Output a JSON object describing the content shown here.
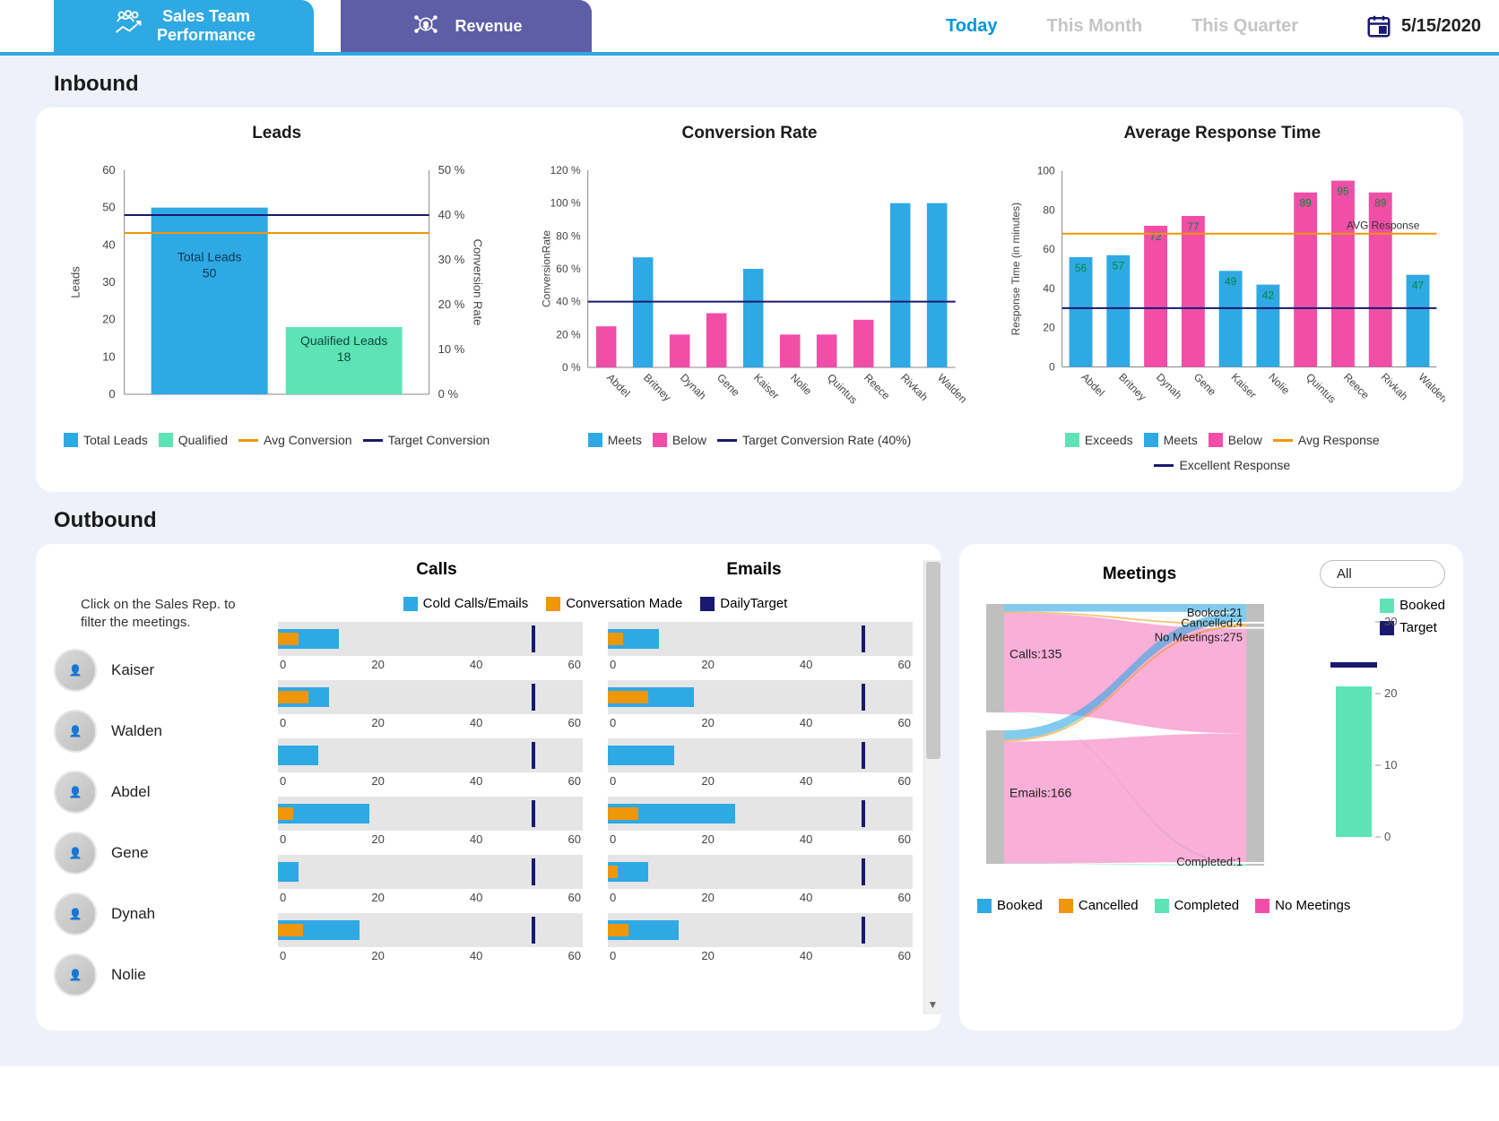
{
  "tabs": {
    "sales": "Sales Team\nPerformance",
    "revenue": "Revenue"
  },
  "periods": {
    "today": "Today",
    "month": "This Month",
    "quarter": "This Quarter",
    "active": "today"
  },
  "date": "5/15/2020",
  "colors": {
    "blue": "#2fa9e3",
    "green": "#5ee3b7",
    "pink": "#f14ea8",
    "orange": "#f09609",
    "navy": "#191970",
    "lightpink": "#f9b8da",
    "grey_bg": "#eef1f9",
    "bar_bg": "#e5e5e5"
  },
  "inbound": {
    "title": "Inbound",
    "leads": {
      "title": "Leads",
      "total_label": "Total Leads",
      "total_value": 50,
      "qualified_label": "Qualified Leads",
      "qualified_value": 18,
      "y_left_max": 60,
      "y_left_step": 10,
      "y_right_max": 50,
      "y_right_step": 10,
      "y_right_suffix": " %",
      "y_left_label": "Leads",
      "y_right_label": "Conversion Rate",
      "avg_conversion_pct": 36,
      "target_conversion_pct": 40,
      "legend": [
        "Total Leads",
        "Qualified",
        "Avg Conversion",
        "Target Conversion"
      ]
    },
    "conversion": {
      "title": "Conversion Rate",
      "y_max": 120,
      "y_step": 20,
      "y_suffix": " %",
      "y_label": "ConversionRate",
      "target_pct": 40,
      "target_label": "Target Conversion Rate (40%)",
      "categories": [
        "Abdel",
        "Britney",
        "Dynah",
        "Gene",
        "Kaiser",
        "Nolie",
        "Quintus",
        "Reece",
        "Rivkah",
        "Walden"
      ],
      "values": [
        25,
        67,
        20,
        33,
        60,
        20,
        20,
        29,
        100,
        100
      ],
      "status": [
        "below",
        "meets",
        "below",
        "below",
        "meets",
        "below",
        "below",
        "below",
        "meets",
        "meets"
      ],
      "legend": [
        "Meets",
        "Below"
      ]
    },
    "response": {
      "title": "Average Response Time",
      "y_max": 100,
      "y_step": 20,
      "y_label": "Response Time (in minutes)",
      "avg_line": 68,
      "avg_label": "AVG Response",
      "excellent_line": 30,
      "categories": [
        "Abdel",
        "Britney",
        "Dynah",
        "Gene",
        "Kaiser",
        "Nolie",
        "Quintus",
        "Reece",
        "Rivkah",
        "Walden"
      ],
      "values": [
        56,
        57,
        72,
        77,
        49,
        42,
        89,
        95,
        89,
        47
      ],
      "status": [
        "meets",
        "meets",
        "below",
        "below",
        "meets",
        "meets",
        "below",
        "below",
        "below",
        "meets"
      ],
      "legend": [
        "Exceeds",
        "Meets",
        "Below",
        "Avg Response",
        "Excellent Response"
      ]
    }
  },
  "outbound": {
    "title": "Outbound",
    "hint": "Click on the Sales Rep. to filter the meetings.",
    "bars_legend": [
      "Cold Calls/Emails",
      "Conversation Made",
      "DailyTarget"
    ],
    "calls_title": "Calls",
    "emails_title": "Emails",
    "axis_max": 60,
    "axis_step": 20,
    "reps": [
      {
        "name": "Kaiser",
        "calls_cold": 12,
        "calls_conv": 4,
        "calls_target": 50,
        "emails_cold": 10,
        "emails_conv": 3,
        "emails_target": 50
      },
      {
        "name": "Walden",
        "calls_cold": 10,
        "calls_conv": 6,
        "calls_target": 50,
        "emails_cold": 17,
        "emails_conv": 8,
        "emails_target": 50
      },
      {
        "name": "Abdel",
        "calls_cold": 8,
        "calls_conv": 0,
        "calls_target": 50,
        "emails_cold": 13,
        "emails_conv": 0,
        "emails_target": 50
      },
      {
        "name": "Gene",
        "calls_cold": 18,
        "calls_conv": 3,
        "calls_target": 50,
        "emails_cold": 25,
        "emails_conv": 6,
        "emails_target": 50
      },
      {
        "name": "Dynah",
        "calls_cold": 4,
        "calls_conv": 0,
        "calls_target": 50,
        "emails_cold": 8,
        "emails_conv": 2,
        "emails_target": 50
      },
      {
        "name": "Nolie",
        "calls_cold": 16,
        "calls_conv": 5,
        "calls_target": 50,
        "emails_cold": 14,
        "emails_conv": 4,
        "emails_target": 50
      }
    ],
    "meetings": {
      "title": "Meetings",
      "filter_value": "All",
      "side_legend": [
        "Booked",
        "Target"
      ],
      "bottom_legend": [
        "Booked",
        "Cancelled",
        "Completed",
        "No Meetings"
      ],
      "sources": {
        "Calls": 135,
        "Emails": 166
      },
      "targets": {
        "Booked": 21,
        "Cancelled": 4,
        "No Meetings": 275,
        "Completed": 1
      },
      "mini": {
        "booked": 21,
        "target": 24,
        "y_max": 30,
        "y_step": 10
      }
    }
  }
}
